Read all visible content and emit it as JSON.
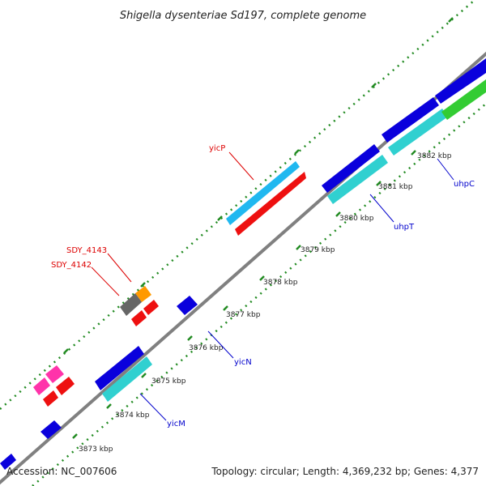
{
  "title": "Shigella dysenteriae Sd197, complete genome",
  "accession": "Accession: NC_007606",
  "stats": "Topology: circular; Length: 4,369,232 bp; Genes: 4,377",
  "colors": {
    "backbone": "#808080",
    "tick": "#228b22",
    "blue": "#0a00dc",
    "cyan": "#30d0d0",
    "skyblue": "#20b8f0",
    "red": "#ee1010",
    "green": "#33cc33",
    "orange": "#ff9900",
    "gray": "#666666",
    "magenta": "#ff33aa",
    "label_red": "#dd0000",
    "label_blue": "#0000cc"
  },
  "kbp_ticks": [
    "3873 kbp",
    "3874 kbp",
    "3875 kbp",
    "3876 kbp",
    "3877 kbp",
    "3878 kbp",
    "3879 kbp",
    "3880 kbp",
    "3881 kbp",
    "3882 kbp"
  ],
  "gene_labels": {
    "yicP": "yicP",
    "sdy4143": "SDY_4143",
    "sdy4142": "SDY_4142",
    "uhpC": "uhpC",
    "uhpT": "uhpT",
    "yicN": "yicN",
    "yicM": "yicM"
  }
}
